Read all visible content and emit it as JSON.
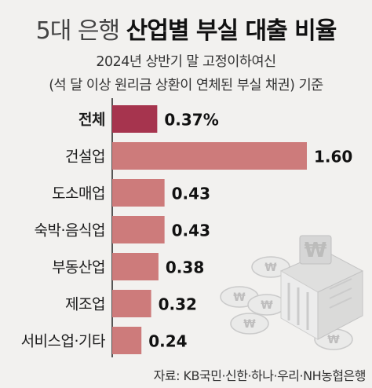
{
  "title_light": "5대 은행",
  "title_bold": "산업별 부실 대출 비율",
  "subtitle_line1": "2024년 상반기 말 고정이하여신",
  "subtitle_line2": "(석 달 이상 원리금 상환이 연체된 부실 채권) 기준",
  "source": "자료: KB국민·신한·하나·우리·NH농협은행",
  "colors": {
    "bar": "#cd7b7b",
    "bar_highlight": "#a6344e",
    "axis": "#222222",
    "background": "#f2f1ef"
  },
  "illustration": "bank-building-and-coins",
  "chart_data": {
    "type": "bar",
    "orientation": "horizontal",
    "categories": [
      "전체",
      "건설업",
      "도소매업",
      "숙박·음식업",
      "부동산업",
      "제조업",
      "서비스업·기타"
    ],
    "values": [
      0.37,
      1.6,
      0.43,
      0.43,
      0.38,
      0.32,
      0.24
    ],
    "value_labels": [
      "0.37%",
      "1.60",
      "0.43",
      "0.43",
      "0.38",
      "0.32",
      "0.24"
    ],
    "unit": "%",
    "highlight_category": "전체",
    "xlim": [
      0,
      1.8
    ],
    "grid": false,
    "legend": "none"
  }
}
